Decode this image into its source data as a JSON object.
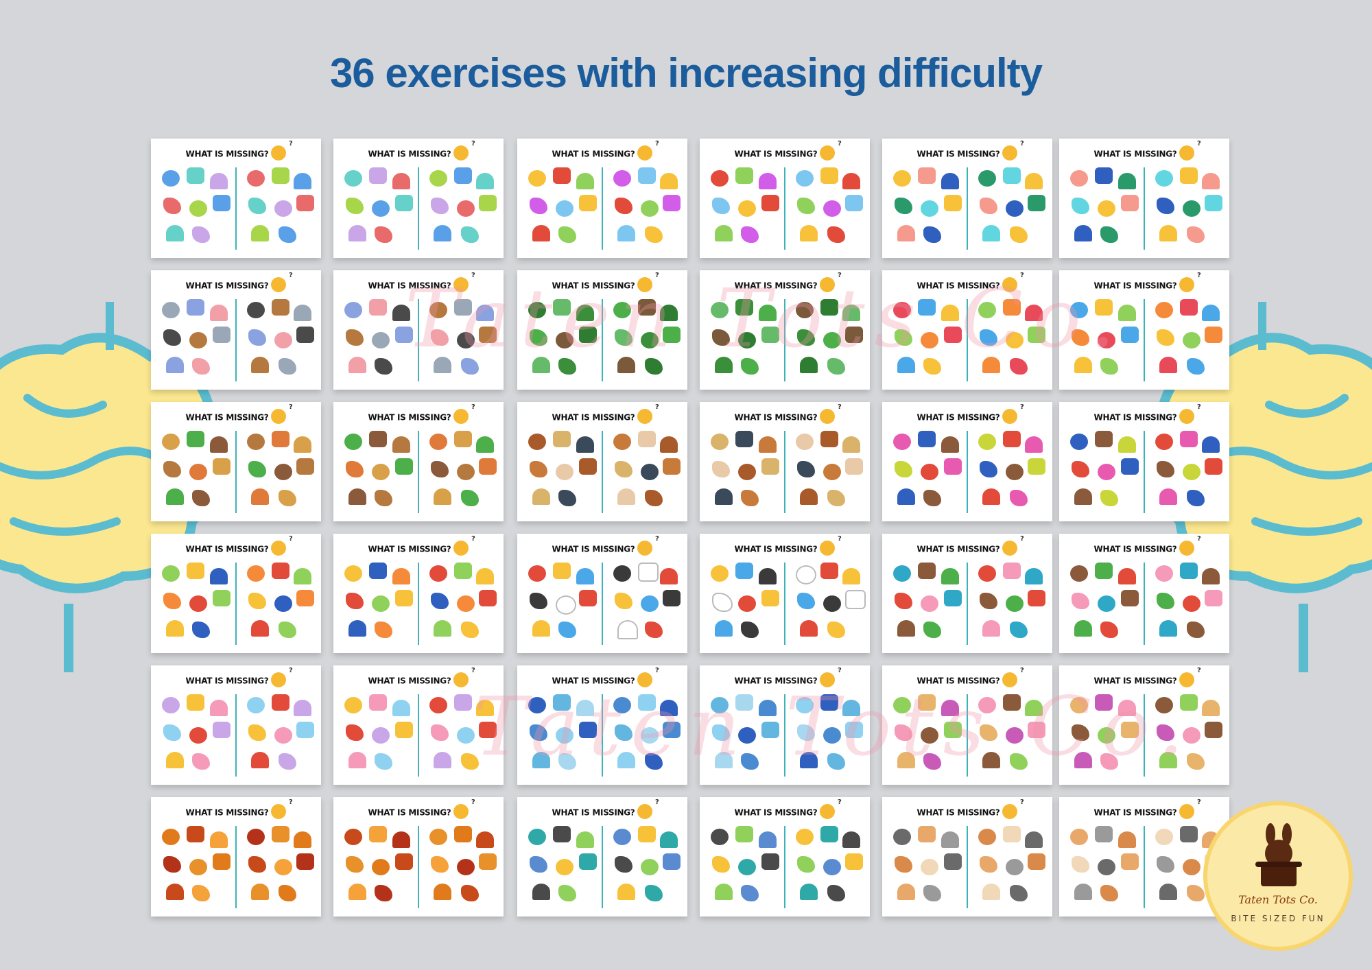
{
  "headline": "36 exercises with increasing difficulty",
  "card_title": "WHAT IS MISSING?",
  "watermark": "Taten Tots Co.",
  "badge": {
    "name": "Taten Tots Co.",
    "tagline": "BITE SIZED FUN"
  },
  "colors": {
    "headline": "#1b5c9c",
    "divider": "#3db3b9",
    "brain_fill": "#fbe78f",
    "brain_line": "#5bbcd0",
    "background": "#d4d6d9"
  },
  "cards": [
    {
      "theme": "3d-shapes",
      "palette": [
        "#5aa0e8",
        "#66d1c8",
        "#c8a6e8",
        "#e86a6a",
        "#a8d64a"
      ]
    },
    {
      "theme": "3d-shapes",
      "palette": [
        "#5aa0e8",
        "#66d1c8",
        "#c8a6e8",
        "#e86a6a",
        "#a8d64a"
      ]
    },
    {
      "theme": "bugs",
      "palette": [
        "#d15de8",
        "#7cc6f0",
        "#f7c23a",
        "#e24a3a",
        "#8fd15a"
      ]
    },
    {
      "theme": "bugs",
      "palette": [
        "#d15de8",
        "#7cc6f0",
        "#f7c23a",
        "#e24a3a",
        "#8fd15a"
      ]
    },
    {
      "theme": "sea-stars",
      "palette": [
        "#f59a8c",
        "#2f5fbf",
        "#2b9a6a",
        "#62d6e0",
        "#f7c23a"
      ]
    },
    {
      "theme": "sea-stars",
      "palette": [
        "#f59a8c",
        "#2f5fbf",
        "#2b9a6a",
        "#62d6e0",
        "#f7c23a"
      ]
    },
    {
      "theme": "animals",
      "palette": [
        "#b5793f",
        "#9aa7b7",
        "#8aa3e0",
        "#f2a0a8",
        "#4a4a4a"
      ]
    },
    {
      "theme": "animals",
      "palette": [
        "#b5793f",
        "#9aa7b7",
        "#8aa3e0",
        "#f2a0a8",
        "#4a4a4a"
      ]
    },
    {
      "theme": "trees",
      "palette": [
        "#3c8f3a",
        "#4caf4a",
        "#7a5a3a",
        "#2e7d32",
        "#66bb6a"
      ]
    },
    {
      "theme": "trees",
      "palette": [
        "#3c8f3a",
        "#4caf4a",
        "#7a5a3a",
        "#2e7d32",
        "#66bb6a"
      ]
    },
    {
      "theme": "toys",
      "palette": [
        "#e84a5a",
        "#4aa8e8",
        "#f7c23a",
        "#8fd15a",
        "#f58a3a"
      ]
    },
    {
      "theme": "toys",
      "palette": [
        "#e84a5a",
        "#4aa8e8",
        "#f7c23a",
        "#8fd15a",
        "#f58a3a"
      ]
    },
    {
      "theme": "forest-animals",
      "palette": [
        "#b5793f",
        "#e07a3a",
        "#d9a04a",
        "#4caf4a",
        "#8a5a3a"
      ]
    },
    {
      "theme": "forest-animals",
      "palette": [
        "#b5793f",
        "#e07a3a",
        "#d9a04a",
        "#4caf4a",
        "#8a5a3a"
      ]
    },
    {
      "theme": "bags",
      "palette": [
        "#d9b36a",
        "#3a4a5a",
        "#c77a3a",
        "#e8c9a8",
        "#a85a2a"
      ]
    },
    {
      "theme": "bags",
      "palette": [
        "#d9b36a",
        "#3a4a5a",
        "#c77a3a",
        "#e8c9a8",
        "#a85a2a"
      ]
    },
    {
      "theme": "birds",
      "palette": [
        "#e24a3a",
        "#e85ab0",
        "#2f5fbf",
        "#8a5a3a",
        "#c8d63a"
      ]
    },
    {
      "theme": "birds",
      "palette": [
        "#e24a3a",
        "#e85ab0",
        "#2f5fbf",
        "#8a5a3a",
        "#c8d63a"
      ]
    },
    {
      "theme": "school",
      "palette": [
        "#2f5fbf",
        "#f58a3a",
        "#e24a3a",
        "#8fd15a",
        "#f7c23a"
      ]
    },
    {
      "theme": "school",
      "palette": [
        "#2f5fbf",
        "#f58a3a",
        "#e24a3a",
        "#8fd15a",
        "#f7c23a"
      ]
    },
    {
      "theme": "vehicles",
      "palette": [
        "#e24a3a",
        "#f7c23a",
        "#4aa8e8",
        "#3a3a3a",
        "#ffffff"
      ]
    },
    {
      "theme": "vehicles",
      "palette": [
        "#e24a3a",
        "#f7c23a",
        "#4aa8e8",
        "#3a3a3a",
        "#ffffff"
      ]
    },
    {
      "theme": "beach",
      "palette": [
        "#e24a3a",
        "#f59ab8",
        "#2fa8c8",
        "#8a5a3a",
        "#4caf4a"
      ]
    },
    {
      "theme": "beach",
      "palette": [
        "#e24a3a",
        "#f59ab8",
        "#2fa8c8",
        "#8a5a3a",
        "#4caf4a"
      ]
    },
    {
      "theme": "popsicles",
      "palette": [
        "#f7c23a",
        "#f59ab8",
        "#8fd1f0",
        "#e24a3a",
        "#c8a6e8"
      ]
    },
    {
      "theme": "popsicles",
      "palette": [
        "#f7c23a",
        "#f59ab8",
        "#8fd1f0",
        "#e24a3a",
        "#c8a6e8"
      ]
    },
    {
      "theme": "snowflakes",
      "palette": [
        "#8fd1f0",
        "#2f5fbf",
        "#62b6e0",
        "#a8d8f0",
        "#4a8ad0"
      ]
    },
    {
      "theme": "snowflakes",
      "palette": [
        "#8fd1f0",
        "#2f5fbf",
        "#62b6e0",
        "#a8d8f0",
        "#4a8ad0"
      ]
    },
    {
      "theme": "donuts",
      "palette": [
        "#c85ab8",
        "#f59ab8",
        "#8a5a3a",
        "#8fd15a",
        "#e8b36a"
      ]
    },
    {
      "theme": "donuts",
      "palette": [
        "#c85ab8",
        "#f59ab8",
        "#8a5a3a",
        "#8fd15a",
        "#e8b36a"
      ]
    },
    {
      "theme": "leaves",
      "palette": [
        "#e07a1a",
        "#c84a1a",
        "#f5a23a",
        "#b5321a",
        "#e8902a"
      ]
    },
    {
      "theme": "leaves",
      "palette": [
        "#e07a1a",
        "#c84a1a",
        "#f5a23a",
        "#b5321a",
        "#e8902a"
      ]
    },
    {
      "theme": "fish",
      "palette": [
        "#5a8ad0",
        "#f7c23a",
        "#2fa8a8",
        "#4a4a4a",
        "#8fd15a"
      ]
    },
    {
      "theme": "fish",
      "palette": [
        "#5a8ad0",
        "#f7c23a",
        "#2fa8a8",
        "#4a4a4a",
        "#8fd15a"
      ]
    },
    {
      "theme": "cats",
      "palette": [
        "#e8a86a",
        "#9a9a9a",
        "#d98a4a",
        "#f0d8b8",
        "#6a6a6a"
      ]
    },
    {
      "theme": "cats",
      "palette": [
        "#e8a86a",
        "#9a9a9a",
        "#d98a4a",
        "#f0d8b8",
        "#6a6a6a"
      ]
    }
  ]
}
